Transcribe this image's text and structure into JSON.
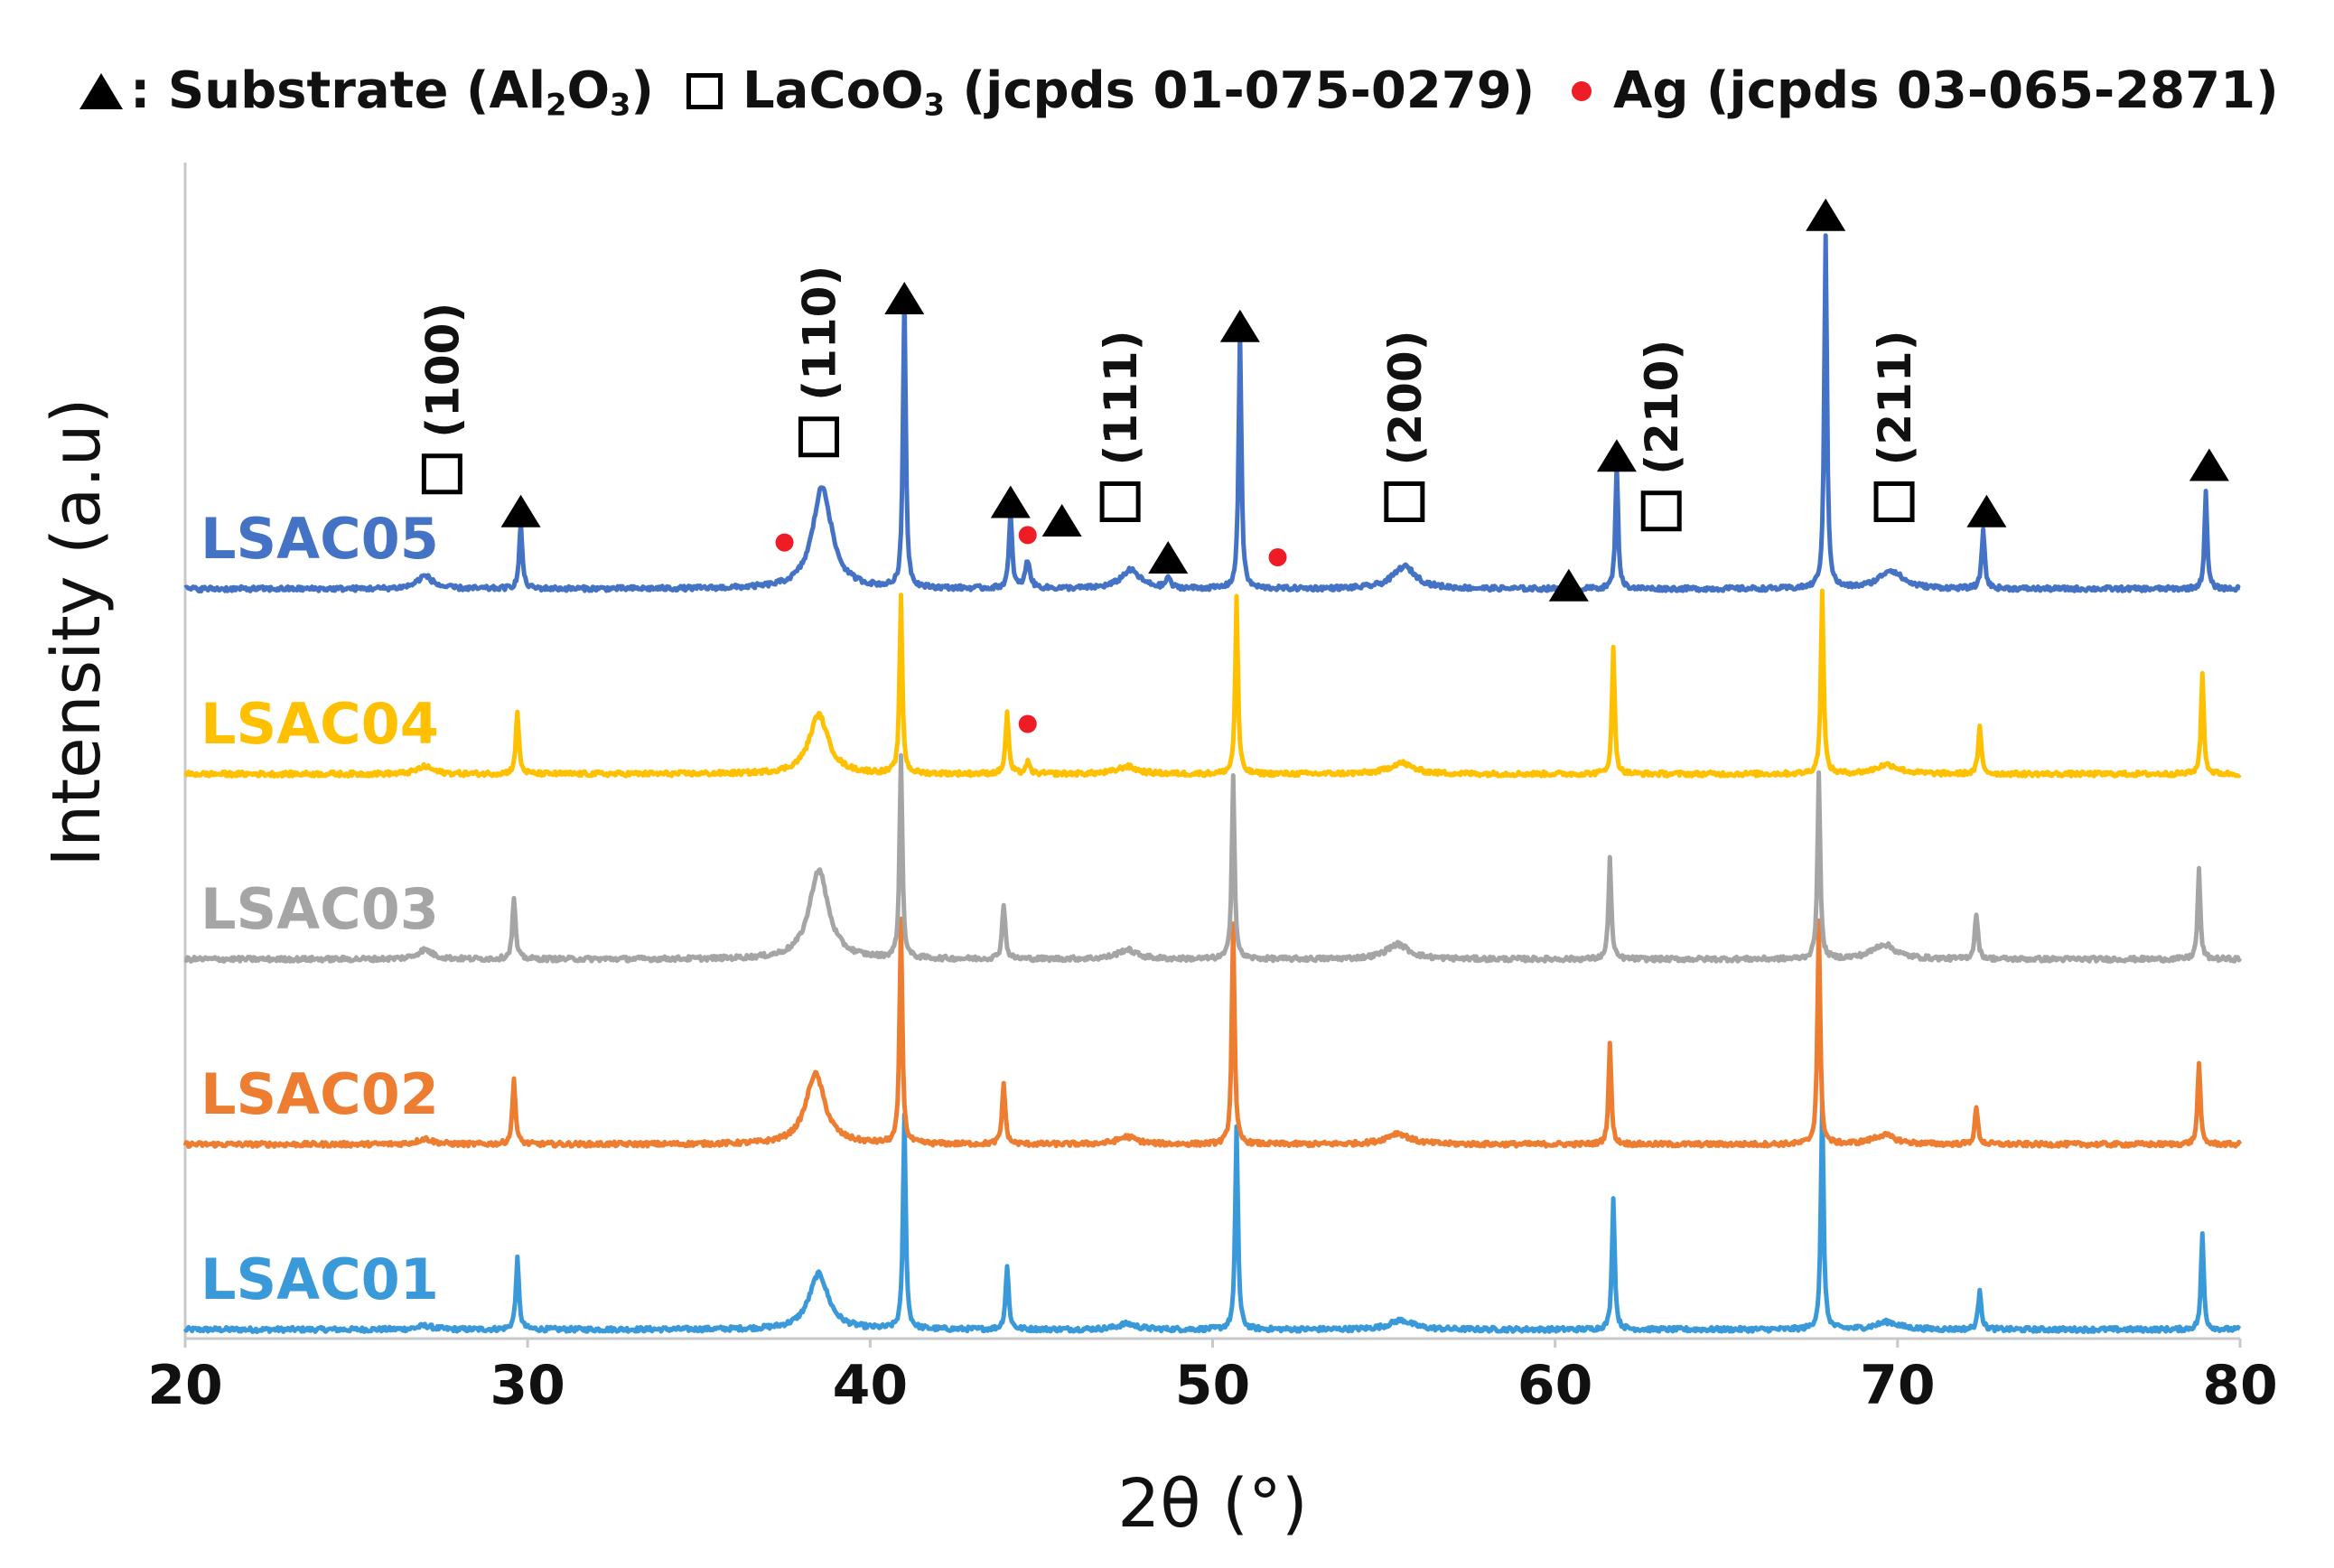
{
  "legend": {
    "substrate": {
      "text": ": Substrate (Al",
      "sub1": "2",
      "mid": "O",
      "sub2": "3",
      "end": ")"
    },
    "lacoo3": {
      "text": "LaCoO",
      "sub": "3",
      "end": " (jcpds 01-075-0279)"
    },
    "ag": {
      "text": "Ag (jcpds 03-065-2871)"
    }
  },
  "chart_data": {
    "type": "line",
    "title": "",
    "xlabel": "2θ (°)",
    "ylabel": "Intensity (a.u)",
    "xlim": [
      20,
      80
    ],
    "xticks": [
      20,
      30,
      40,
      50,
      60,
      70,
      80
    ],
    "grid": false,
    "series": [
      {
        "name": "LSAC01",
        "color": "#3a9ad9",
        "baseline": 0.0,
        "peaks": [
          [
            27.0,
            0.02,
            0.4
          ],
          [
            29.7,
            0.38,
            0.08
          ],
          [
            38.5,
            0.3,
            0.5
          ],
          [
            41.0,
            1.15,
            0.07
          ],
          [
            44.0,
            0.34,
            0.08
          ],
          [
            47.5,
            0.03,
            0.5
          ],
          [
            50.7,
            1.1,
            0.07
          ],
          [
            55.5,
            0.05,
            0.6
          ],
          [
            61.7,
            0.72,
            0.07
          ],
          [
            67.8,
            1.22,
            0.07
          ],
          [
            69.7,
            0.04,
            0.6
          ],
          [
            72.4,
            0.22,
            0.08
          ],
          [
            78.9,
            0.52,
            0.07
          ]
        ]
      },
      {
        "name": "LSAC02",
        "color": "#ed7d31",
        "baseline": 1.0,
        "peaks": [
          [
            27.0,
            0.03,
            0.4
          ],
          [
            29.6,
            0.35,
            0.08
          ],
          [
            38.4,
            0.38,
            0.5
          ],
          [
            40.9,
            1.2,
            0.07
          ],
          [
            43.9,
            0.33,
            0.08
          ],
          [
            47.5,
            0.04,
            0.5
          ],
          [
            50.6,
            1.2,
            0.07
          ],
          [
            55.4,
            0.06,
            0.6
          ],
          [
            61.6,
            0.55,
            0.07
          ],
          [
            67.7,
            1.2,
            0.07
          ],
          [
            69.6,
            0.05,
            0.6
          ],
          [
            72.3,
            0.2,
            0.08
          ],
          [
            78.8,
            0.45,
            0.07
          ]
        ]
      },
      {
        "name": "LSAC03",
        "color": "#a5a5a5",
        "baseline": 2.0,
        "peaks": [
          [
            27.0,
            0.05,
            0.4
          ],
          [
            29.6,
            0.33,
            0.08
          ],
          [
            38.5,
            0.48,
            0.5
          ],
          [
            40.9,
            1.1,
            0.07
          ],
          [
            43.9,
            0.3,
            0.08
          ],
          [
            47.5,
            0.05,
            0.5
          ],
          [
            50.6,
            1.0,
            0.07
          ],
          [
            55.4,
            0.08,
            0.6
          ],
          [
            61.6,
            0.55,
            0.07
          ],
          [
            67.7,
            1.0,
            0.07
          ],
          [
            69.6,
            0.08,
            0.6
          ],
          [
            72.3,
            0.25,
            0.08
          ],
          [
            78.8,
            0.48,
            0.07
          ]
        ]
      },
      {
        "name": "LSAC04",
        "color": "#ffc000",
        "baseline": 3.0,
        "peaks": [
          [
            27.0,
            0.04,
            0.4
          ],
          [
            29.7,
            0.33,
            0.08
          ],
          [
            38.5,
            0.32,
            0.5
          ],
          [
            40.9,
            0.95,
            0.07
          ],
          [
            44.0,
            0.33,
            0.08
          ],
          [
            44.6,
            0.06,
            0.1
          ],
          [
            47.5,
            0.04,
            0.5
          ],
          [
            50.7,
            0.95,
            0.07
          ],
          [
            55.5,
            0.06,
            0.6
          ],
          [
            61.7,
            0.68,
            0.07
          ],
          [
            67.8,
            1.0,
            0.07
          ],
          [
            69.7,
            0.05,
            0.6
          ],
          [
            72.4,
            0.25,
            0.08
          ],
          [
            78.9,
            0.55,
            0.07
          ]
        ]
      },
      {
        "name": "LSAC05",
        "color": "#4472c4",
        "baseline": 4.0,
        "peaks": [
          [
            27.0,
            0.07,
            0.4
          ],
          [
            29.8,
            0.35,
            0.08
          ],
          [
            38.6,
            0.55,
            0.5
          ],
          [
            41.0,
            1.6,
            0.07
          ],
          [
            44.1,
            0.4,
            0.08
          ],
          [
            44.6,
            0.15,
            0.12
          ],
          [
            47.6,
            0.1,
            0.5
          ],
          [
            48.7,
            0.06,
            0.1
          ],
          [
            50.8,
            1.4,
            0.07
          ],
          [
            55.6,
            0.12,
            0.6
          ],
          [
            61.8,
            0.68,
            0.07
          ],
          [
            67.9,
            1.9,
            0.07
          ],
          [
            69.8,
            0.1,
            0.6
          ],
          [
            72.5,
            0.32,
            0.08
          ],
          [
            79.0,
            0.52,
            0.07
          ]
        ]
      }
    ],
    "annotations": {
      "lacoo3_peaks": [
        {
          "label": "(100)",
          "x": 27.5,
          "level": 4.65
        },
        {
          "label": "(110)",
          "x": 38.5,
          "level": 4.85
        },
        {
          "label": "(111)",
          "x": 47.3,
          "level": 4.5
        },
        {
          "label": "(200)",
          "x": 55.6,
          "level": 4.5
        },
        {
          "label": "(210)",
          "x": 63.1,
          "level": 4.45
        },
        {
          "label": "(211)",
          "x": 69.9,
          "level": 4.5
        }
      ],
      "substrate_markers": [
        {
          "x": 29.8,
          "level": 4.45
        },
        {
          "x": 41.0,
          "level": 5.6
        },
        {
          "x": 44.1,
          "level": 4.5
        },
        {
          "x": 45.6,
          "level": 4.4
        },
        {
          "x": 48.7,
          "level": 4.2
        },
        {
          "x": 50.8,
          "level": 5.45
        },
        {
          "x": 60.4,
          "level": 4.05
        },
        {
          "x": 61.8,
          "level": 4.75
        },
        {
          "x": 67.9,
          "level": 6.05
        },
        {
          "x": 72.6,
          "level": 4.45
        },
        {
          "x": 79.1,
          "level": 4.7
        }
      ],
      "ag_markers": [
        {
          "x": 37.5,
          "level": 4.28
        },
        {
          "x": 44.6,
          "level": 4.32
        },
        {
          "x": 51.9,
          "level": 4.2
        },
        {
          "x": 44.6,
          "level": 3.3
        }
      ]
    }
  }
}
